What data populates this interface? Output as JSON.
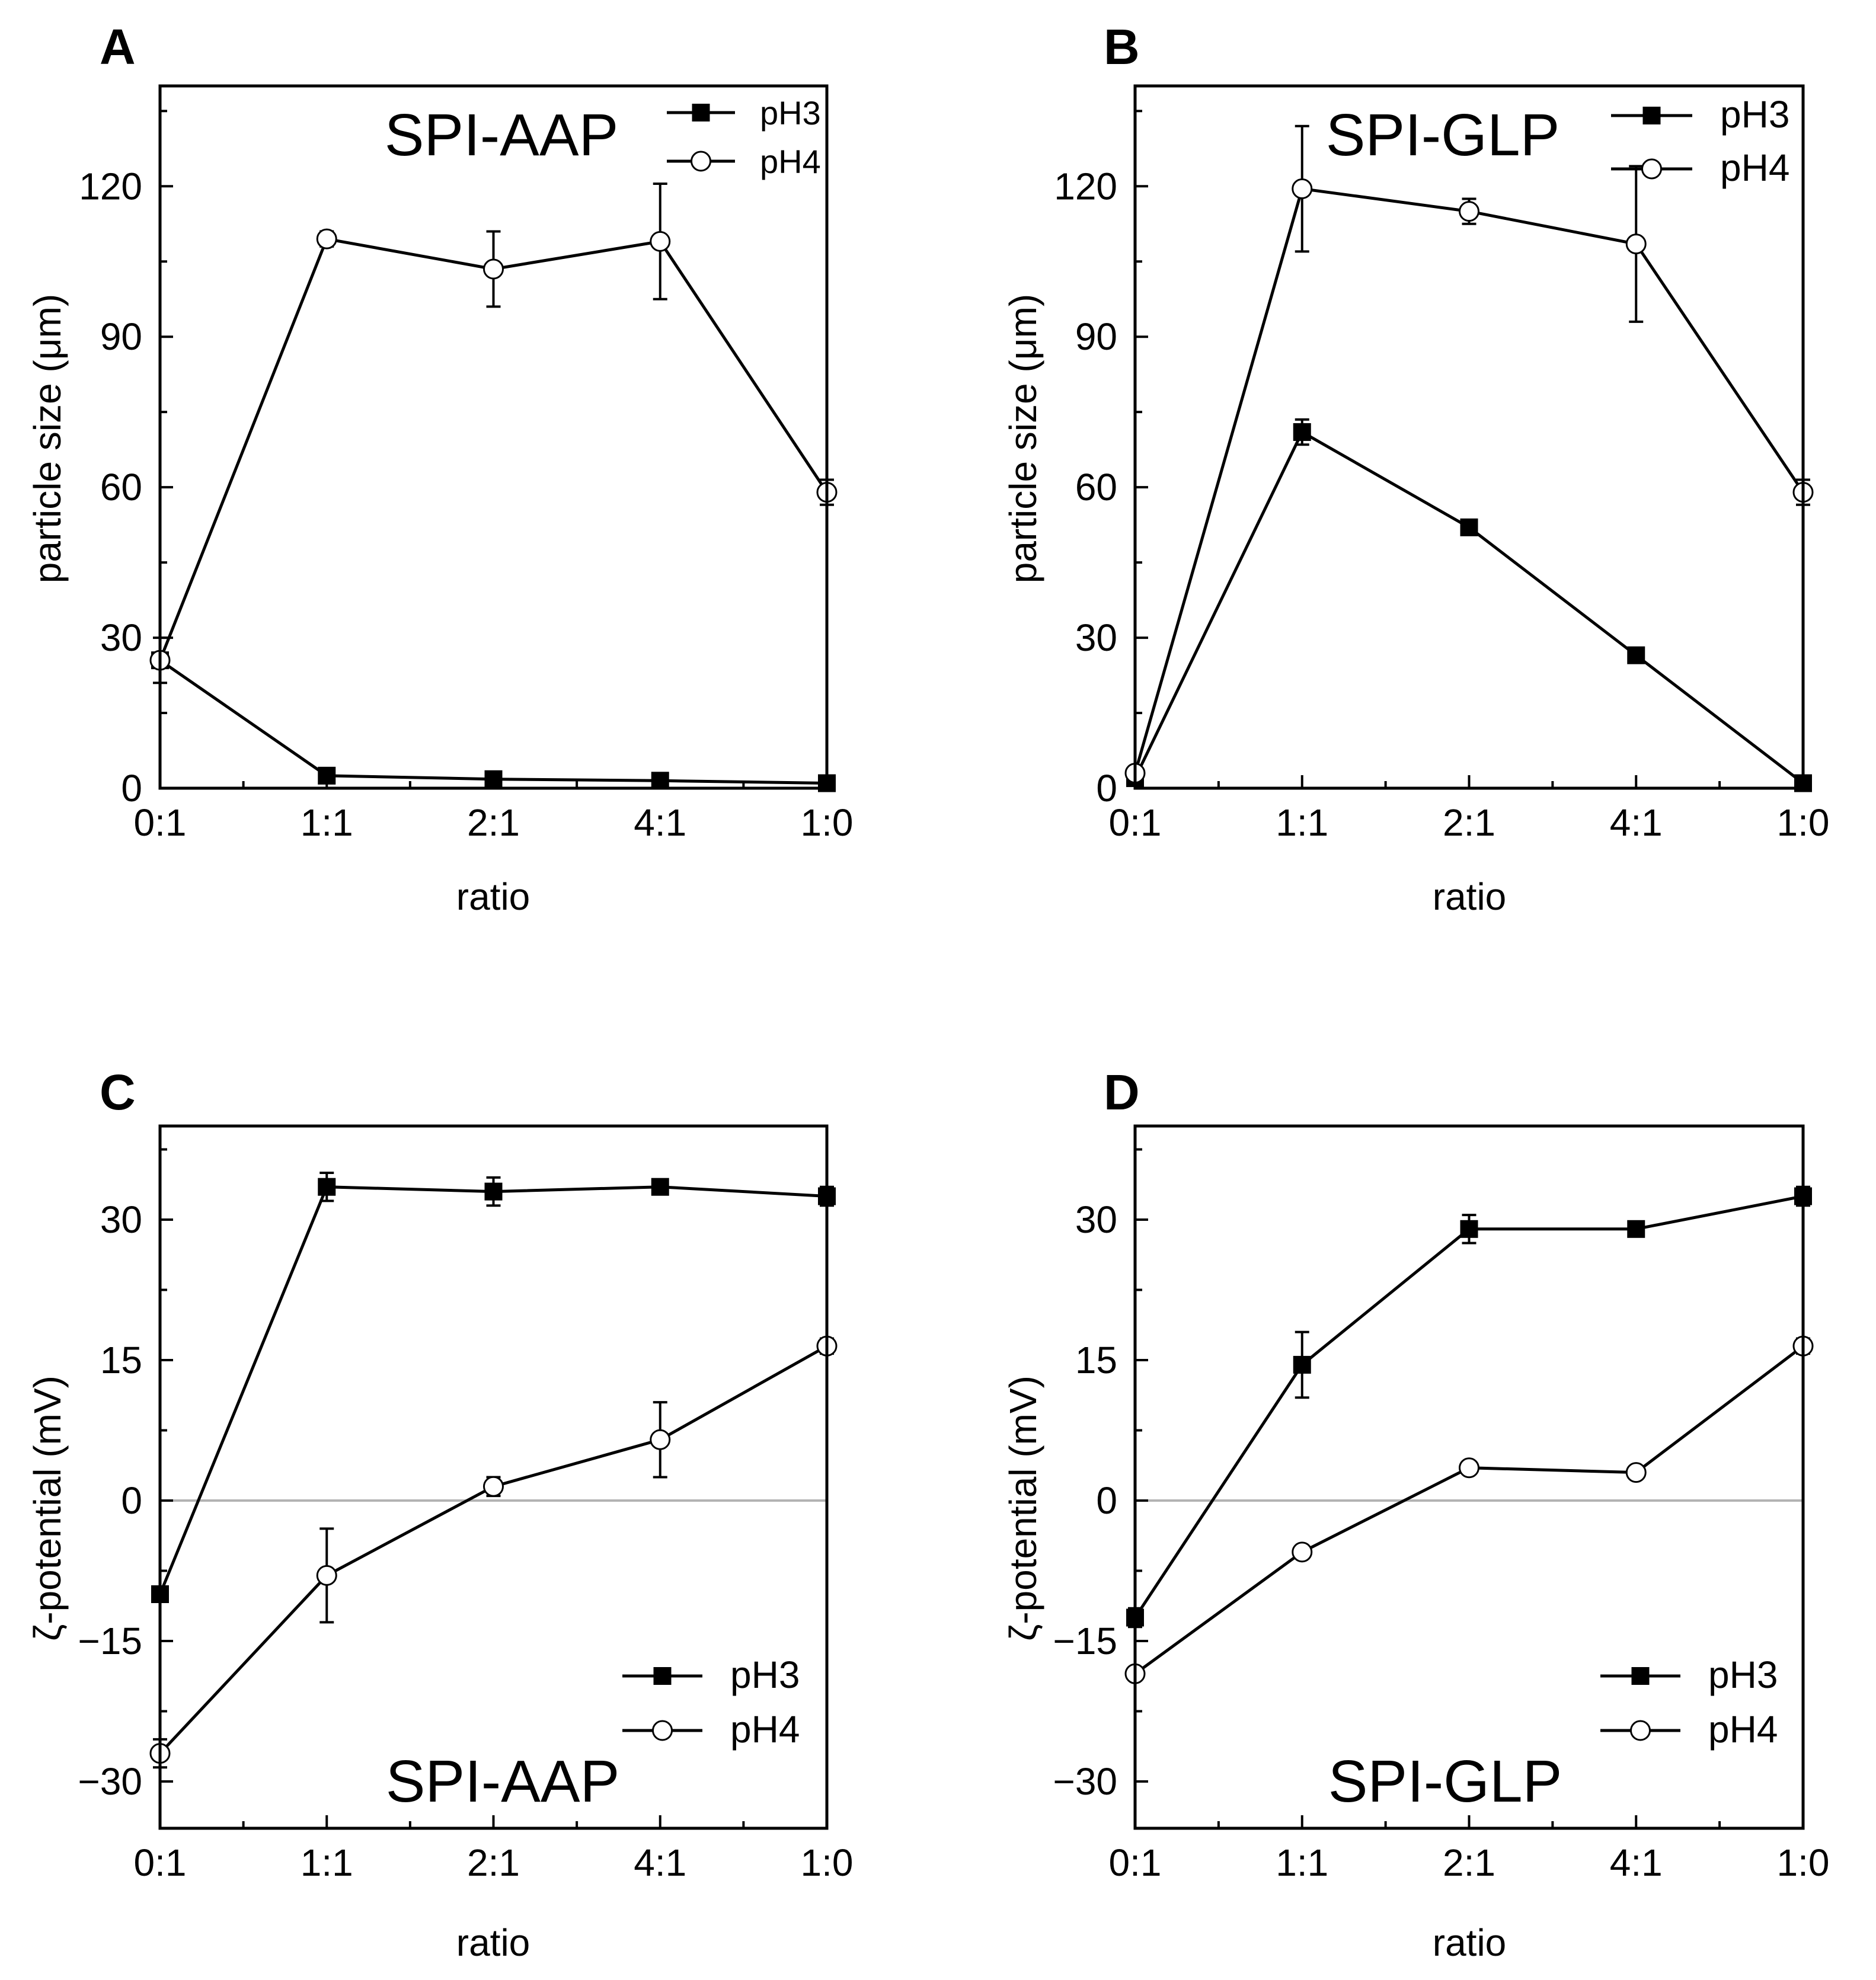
{
  "figure": {
    "panels": [
      {
        "letter": "A",
        "title": "SPI-AAP"
      },
      {
        "letter": "B",
        "title": "SPI-GLP"
      },
      {
        "letter": "C",
        "title": "SPI-AAP"
      },
      {
        "letter": "D",
        "title": "SPI-GLP"
      }
    ]
  },
  "chart_data": [
    {
      "panel": "A",
      "type": "line",
      "title": "SPI-AAP",
      "xlabel": "ratio",
      "ylabel": "particle size (μm)",
      "categories": [
        "0:1",
        "1:1",
        "2:1",
        "4:1",
        "1:0"
      ],
      "ylim": [
        0,
        140
      ],
      "yticks": [
        0,
        30,
        60,
        90,
        120
      ],
      "yticklabels": [
        "0",
        "30",
        "60",
        "90",
        "120"
      ],
      "zero_line": false,
      "legend_position": "top-right",
      "series": [
        {
          "name": "pH3",
          "marker": "filled-square",
          "values": [
            25.5,
            2.5,
            1.8,
            1.5,
            1.0
          ],
          "errors": [
            4.5,
            1.2,
            0.8,
            0.8,
            0.5
          ]
        },
        {
          "name": "pH4",
          "marker": "open-circle",
          "values": [
            25.5,
            109.5,
            103.5,
            109.0,
            59.0
          ],
          "errors": [
            1.5,
            1.5,
            7.5,
            11.5,
            2.5
          ]
        }
      ]
    },
    {
      "panel": "B",
      "type": "line",
      "title": "SPI-GLP",
      "xlabel": "ratio",
      "ylabel": "particle size (μm)",
      "categories": [
        "0:1",
        "1:1",
        "2:1",
        "4:1",
        "1:0"
      ],
      "ylim": [
        0,
        140
      ],
      "yticks": [
        0,
        30,
        60,
        90,
        120
      ],
      "yticklabels": [
        "0",
        "30",
        "60",
        "90",
        "120"
      ],
      "zero_line": false,
      "legend_position": "top-right",
      "series": [
        {
          "name": "pH3",
          "marker": "filled-square",
          "values": [
            2.0,
            71.0,
            52.0,
            26.5,
            1.0
          ],
          "errors": [
            0.5,
            2.5,
            1.5,
            1.5,
            0.5
          ]
        },
        {
          "name": "pH4",
          "marker": "open-circle",
          "values": [
            3.0,
            119.5,
            115.0,
            108.5,
            59.0
          ],
          "errors": [
            0.8,
            12.5,
            2.5,
            15.5,
            2.5
          ]
        }
      ]
    },
    {
      "panel": "C",
      "type": "line",
      "title": "SPI-AAP",
      "xlabel": "ratio",
      "ylabel": "ζ-potential (mV)",
      "categories": [
        "0:1",
        "1:1",
        "2:1",
        "4:1",
        "1:0"
      ],
      "ylim": [
        -35,
        40
      ],
      "yticks": [
        -30,
        -15,
        0,
        15,
        30
      ],
      "yticklabels": [
        "−30",
        "−15",
        "0",
        "15",
        "30"
      ],
      "zero_line": true,
      "legend_position": "bottom-right",
      "series": [
        {
          "name": "pH3",
          "marker": "filled-square",
          "values": [
            -10.0,
            33.5,
            33.0,
            33.5,
            32.5
          ],
          "errors": [
            0.5,
            1.5,
            1.5,
            0.5,
            1.0
          ]
        },
        {
          "name": "pH4",
          "marker": "open-circle",
          "values": [
            -27.0,
            -8.0,
            1.5,
            6.5,
            16.5
          ],
          "errors": [
            1.5,
            5.0,
            1.0,
            4.0,
            0.8
          ]
        }
      ]
    },
    {
      "panel": "D",
      "type": "line",
      "title": "SPI-GLP",
      "xlabel": "ratio",
      "ylabel": "ζ-potential (mV)",
      "categories": [
        "0:1",
        "1:1",
        "2:1",
        "4:1",
        "1:0"
      ],
      "ylim": [
        -35,
        40
      ],
      "yticks": [
        -30,
        -15,
        0,
        15,
        30
      ],
      "yticklabels": [
        "−30",
        "−15",
        "0",
        "15",
        "30"
      ],
      "zero_line": true,
      "legend_position": "bottom-right",
      "series": [
        {
          "name": "pH3",
          "marker": "filled-square",
          "values": [
            -12.5,
            14.5,
            29.0,
            29.0,
            32.5
          ],
          "errors": [
            1.0,
            3.5,
            1.5,
            0.5,
            1.0
          ]
        },
        {
          "name": "pH4",
          "marker": "open-circle",
          "values": [
            -18.5,
            -5.5,
            3.5,
            3.0,
            16.5
          ],
          "errors": [
            0.5,
            0.5,
            0.5,
            0.5,
            0.8
          ]
        }
      ]
    }
  ]
}
